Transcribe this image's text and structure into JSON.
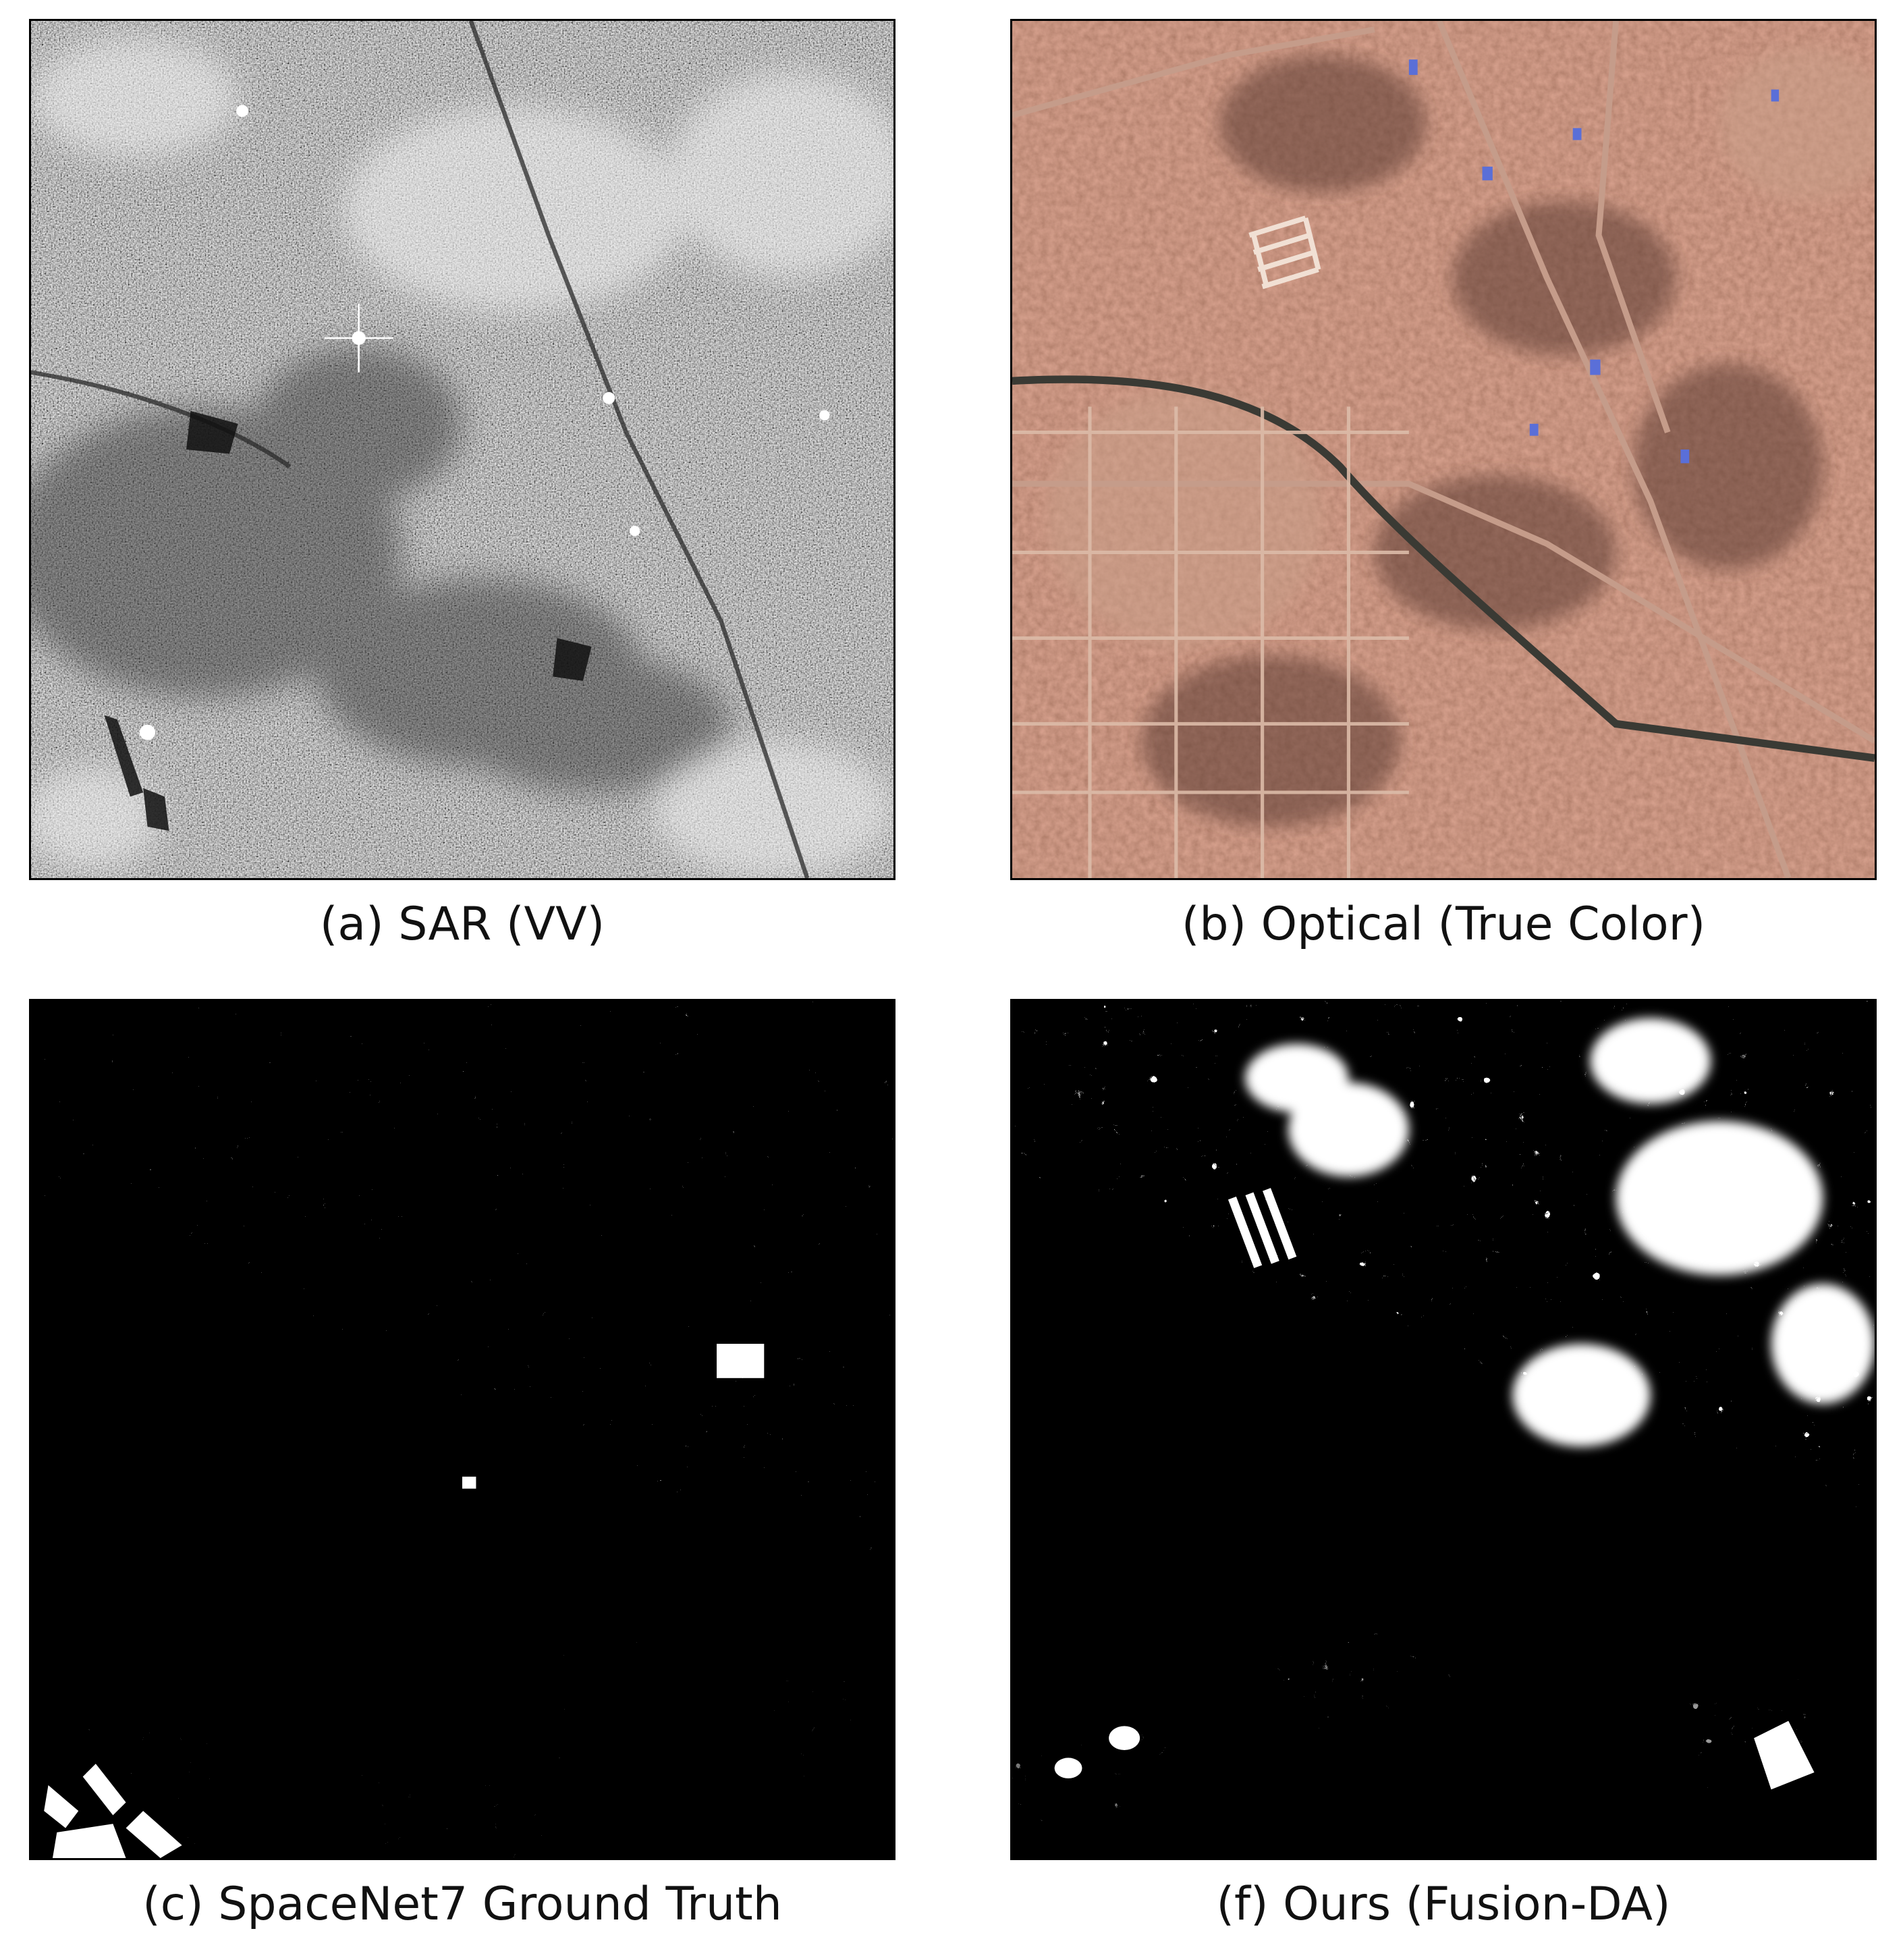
{
  "figure": {
    "panels": [
      {
        "id": "a",
        "caption": "(a) SAR (VV)",
        "imagery": "sar-grayscale-speckle"
      },
      {
        "id": "b",
        "caption": "(b) Optical (True Color)",
        "imagery": "optical-urban-true-color"
      },
      {
        "id": "c",
        "caption": "(c) SpaceNet7 Ground Truth",
        "imagery": "binary-building-mask"
      },
      {
        "id": "f",
        "caption": "(f) Ours (Fusion-DA)",
        "imagery": "binary-building-mask"
      }
    ],
    "colors": {
      "frame": "#000000",
      "background": "#ffffff",
      "sar_base": "#767676",
      "optical_base": "#a66a55",
      "mask_background": "#000000",
      "mask_foreground": "#ffffff",
      "roof_blue": "#5a6fd8"
    }
  }
}
